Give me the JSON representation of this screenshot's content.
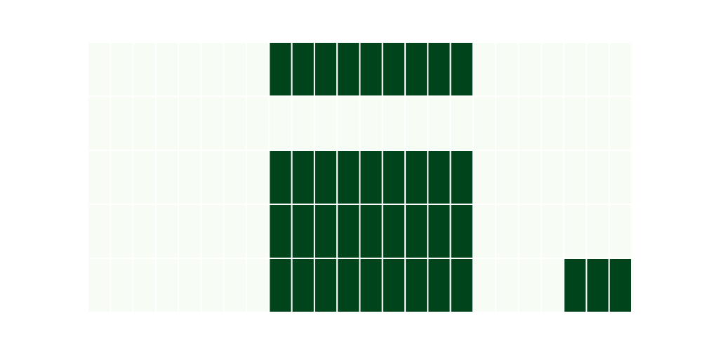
{
  "chart_data": {
    "type": "heatmap",
    "title": "",
    "xlabel": "",
    "ylabel": "",
    "n_rows": 5,
    "n_cols": 24,
    "values": [
      [
        0,
        0,
        0,
        0,
        0,
        0,
        0,
        0,
        1,
        1,
        1,
        1,
        1,
        1,
        1,
        1,
        1,
        0,
        0,
        0,
        0,
        0,
        0,
        0
      ],
      [
        0,
        0,
        0,
        0,
        0,
        0,
        0,
        0,
        0,
        0,
        0,
        0,
        0,
        0,
        0,
        0,
        0,
        0,
        0,
        0,
        0,
        0,
        0,
        0
      ],
      [
        0,
        0,
        0,
        0,
        0,
        0,
        0,
        0,
        1,
        1,
        1,
        1,
        1,
        1,
        1,
        1,
        1,
        0,
        0,
        0,
        0,
        0,
        0,
        0
      ],
      [
        0,
        0,
        0,
        0,
        0,
        0,
        0,
        0,
        1,
        1,
        1,
        1,
        1,
        1,
        1,
        1,
        1,
        0,
        0,
        0,
        0,
        0,
        0,
        0
      ],
      [
        0,
        0,
        0,
        0,
        0,
        0,
        0,
        0,
        1,
        1,
        1,
        1,
        1,
        1,
        1,
        1,
        1,
        0,
        0,
        0,
        0,
        1,
        1,
        1
      ]
    ],
    "colormap": {
      "low": "#f7fcf5",
      "high": "#00441b"
    },
    "cell_border_color": "#ffffff",
    "grid": false,
    "axes_visible": false
  }
}
